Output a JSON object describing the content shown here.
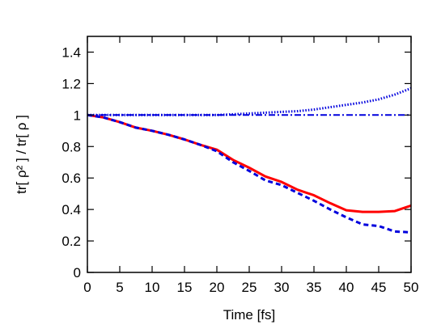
{
  "chart_data": {
    "type": "line",
    "xlabel": "Time [fs]",
    "ylabel": "tr[ ρ² ] / tr[ ρ ]",
    "xlim": [
      0,
      50
    ],
    "ylim": [
      0,
      1.5
    ],
    "xticks": [
      "0",
      "5",
      "10",
      "15",
      "20",
      "25",
      "30",
      "35",
      "40",
      "45",
      "50"
    ],
    "yticks": [
      "0",
      "0.2",
      "0.4",
      "0.6",
      "0.8",
      "1",
      "1.2",
      "1.4"
    ],
    "grid": false,
    "legend": "none",
    "x": [
      0,
      2.5,
      5,
      7.5,
      10,
      12.5,
      15,
      17.5,
      20,
      22.5,
      25,
      27.5,
      30,
      32.5,
      35,
      37.5,
      40,
      42.5,
      45,
      47.5,
      50
    ],
    "series": [
      {
        "color": "#ff0000",
        "style": "solid",
        "values": [
          1.0,
          0.985,
          0.955,
          0.92,
          0.9,
          0.875,
          0.845,
          0.81,
          0.78,
          0.715,
          0.665,
          0.61,
          0.575,
          0.525,
          0.49,
          0.44,
          0.395,
          0.385,
          0.385,
          0.39,
          0.425
        ]
      },
      {
        "color": "#0000dd",
        "style": "dashed",
        "values": [
          1.0,
          0.985,
          0.955,
          0.92,
          0.9,
          0.875,
          0.845,
          0.81,
          0.77,
          0.7,
          0.645,
          0.585,
          0.555,
          0.505,
          0.455,
          0.4,
          0.35,
          0.305,
          0.295,
          0.26,
          0.255
        ]
      },
      {
        "color": "#0000dd",
        "style": "dotted",
        "values": [
          1.0,
          1.0,
          1.0,
          1.0,
          1.0,
          1.0,
          1.0,
          1.0,
          1.0,
          1.005,
          1.01,
          1.015,
          1.02,
          1.025,
          1.035,
          1.05,
          1.065,
          1.08,
          1.1,
          1.13,
          1.17
        ]
      },
      {
        "color": "#0000dd",
        "style": "dashdot",
        "values": [
          1.0,
          1.0,
          1.0,
          1.0,
          1.0,
          1.0,
          1.0,
          1.0,
          1.0,
          1.0,
          1.0,
          1.0,
          1.0,
          1.0,
          1.0,
          1.0,
          1.0,
          1.0,
          1.0,
          1.0,
          1.0
        ]
      }
    ]
  }
}
